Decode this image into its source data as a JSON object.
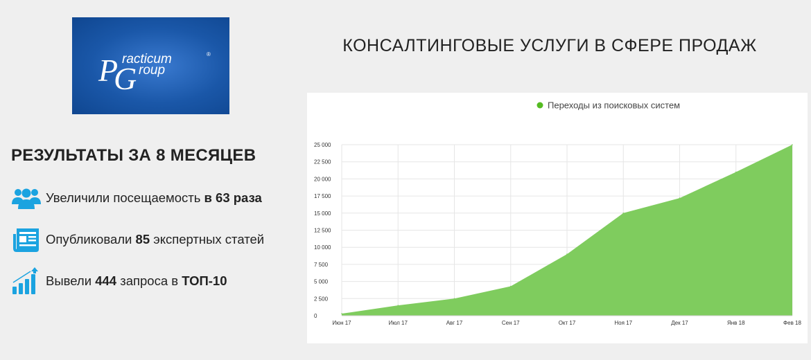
{
  "logo": {
    "text_top": "racticum",
    "text_bottom": "roup",
    "letter_p": "P",
    "letter_g": "G",
    "reg": "®"
  },
  "page_title": "КОНСАЛТИНГОВЫЕ УСЛУГИ В СФЕРЕ ПРОДАЖ",
  "results": {
    "heading": "РЕЗУЛЬТАТЫ ЗА 8 МЕСЯЦЕВ",
    "items": [
      {
        "icon": "users-icon",
        "prefix": "Увеличили посещаемость ",
        "bold": "в 63 раза",
        "suffix": ""
      },
      {
        "icon": "newspaper-icon",
        "prefix": "Опубликовали ",
        "bold": "85",
        "suffix": " экспертных статей"
      },
      {
        "icon": "growth-bars-icon",
        "prefix": "Вывели ",
        "bold": "444",
        "suffix": " запроса в ",
        "bold2": "ТОП-10"
      }
    ],
    "icon_color": "#1ba3e0"
  },
  "chart_data": {
    "type": "area",
    "series": [
      {
        "name": "Переходы из поисковых систем",
        "color": "#7fcc5e",
        "values": [
          300,
          1500,
          2500,
          4300,
          9000,
          15000,
          17200,
          21000,
          25000
        ]
      }
    ],
    "categories": [
      "Июн 17",
      "Июл 17",
      "Авг 17",
      "Сен 17",
      "Окт 17",
      "Ноя 17",
      "Дек 17",
      "Янв 18",
      "Фев 18"
    ],
    "ylim": [
      0,
      25000
    ],
    "yticks": [
      0,
      2500,
      5000,
      7500,
      10000,
      12500,
      15000,
      17500,
      20000,
      22500,
      25000
    ],
    "ytick_labels": [
      "0",
      "2 500",
      "5 000",
      "7 500",
      "10 000",
      "12 500",
      "15 000",
      "17 500",
      "20 000",
      "22 500",
      "25 000"
    ],
    "grid": true,
    "legend_position": "top-center",
    "legend_marker_color": "#55bb22"
  }
}
